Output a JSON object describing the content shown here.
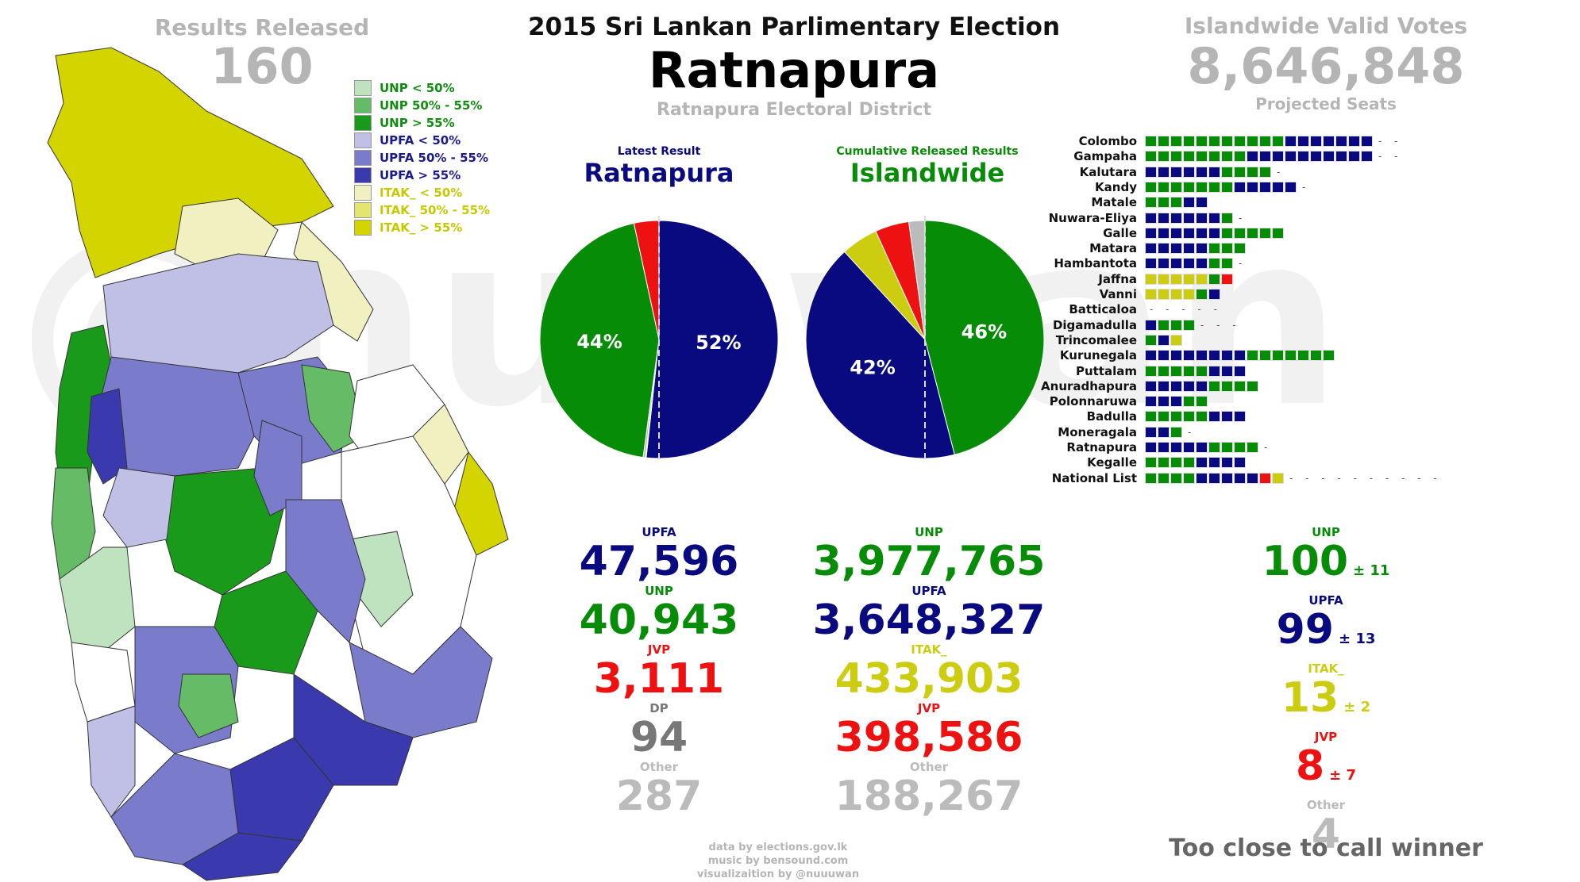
{
  "header": {
    "results_released_label": "Results Released",
    "results_released_value": "160",
    "title": "2015 Sri Lankan Parlimentary Election",
    "district": "Ratnapura",
    "district_sub": "Ratnapura Electoral District",
    "valid_votes_label": "Islandwide Valid Votes",
    "valid_votes_value": "8,646,848",
    "projected_label": "Projected Seats",
    "watermark": "@nuuwan"
  },
  "legend": [
    {
      "label": "UNP < 50%",
      "color": "#bfe3bf",
      "text_color": "#118c11"
    },
    {
      "label": "UNP 50% - 55%",
      "color": "#66bb66",
      "text_color": "#118c11"
    },
    {
      "label": "UNP > 55%",
      "color": "#1a9a1a",
      "text_color": "#118c11"
    },
    {
      "label": "UPFA < 50%",
      "color": "#c0c0e6",
      "text_color": "#1a1a8c"
    },
    {
      "label": "UPFA 50% - 55%",
      "color": "#7b7bcc",
      "text_color": "#1a1a8c"
    },
    {
      "label": "UPFA > 55%",
      "color": "#3a3aae",
      "text_color": "#1a1a8c"
    },
    {
      "label": "ITAK_ < 50%",
      "color": "#f0f0c0",
      "text_color": "#c8c800"
    },
    {
      "label": "ITAK_ 50% - 55%",
      "color": "#e4e470",
      "text_color": "#c8c800"
    },
    {
      "label": "ITAK_ > 55%",
      "color": "#d4d400",
      "text_color": "#c8c800"
    }
  ],
  "colors": {
    "UNP": "#078c07",
    "UPFA": "#0a0a80",
    "JVP": "#ee1111",
    "ITAK": "#cccc11",
    "DP": "#777777",
    "Other": "#bbbbbb"
  },
  "chart_data": [
    {
      "type": "pie",
      "subtitle": "Latest Result",
      "title": "Ratnapura",
      "slices": [
        {
          "name": "UPFA",
          "value": 47596,
          "pct_label": "52%"
        },
        {
          "name": "UNP",
          "value": 40943,
          "pct_label": "44%"
        },
        {
          "name": "JVP",
          "value": 3111,
          "pct_label": ""
        },
        {
          "name": "DP",
          "value": 94,
          "pct_label": ""
        },
        {
          "name": "Other",
          "value": 287,
          "pct_label": ""
        }
      ]
    },
    {
      "type": "pie",
      "subtitle": "Cumulative Released Results",
      "title": "Islandwide",
      "slices": [
        {
          "name": "UNP",
          "value": 3977765,
          "pct_label": "46%"
        },
        {
          "name": "UPFA",
          "value": 3648327,
          "pct_label": "42%"
        },
        {
          "name": "ITAK_",
          "value": 433903,
          "pct_label": ""
        },
        {
          "name": "JVP",
          "value": 398586,
          "pct_label": ""
        },
        {
          "name": "Other",
          "value": 188267,
          "pct_label": ""
        }
      ]
    },
    {
      "type": "bar",
      "title": "Projected Seats",
      "rows": [
        {
          "district": "Colombo",
          "UNP": 11,
          "UPFA": 7,
          "ITAK": 0,
          "JVP": 0,
          "dashes": 2
        },
        {
          "district": "Gampaha",
          "UNP": 8,
          "UPFA": 10,
          "ITAK": 0,
          "JVP": 0,
          "dashes": 2
        },
        {
          "district": "Kalutara",
          "UNP": 0,
          "UPFA": 6,
          "ITAK": 0,
          "JVP": 0,
          "dashes": 1,
          "UNP_after": 4
        },
        {
          "district": "Kandy",
          "UNP": 7,
          "UPFA": 5,
          "ITAK": 0,
          "JVP": 0,
          "dashes": 1
        },
        {
          "district": "Matale",
          "UNP": 3,
          "UPFA": 2,
          "ITAK": 0,
          "JVP": 0,
          "dashes": 0
        },
        {
          "district": "Nuwara-Eliya",
          "UNP": 0,
          "UPFA": 6,
          "ITAK": 0,
          "JVP": 0,
          "dashes": 1,
          "UNP_after": 1
        },
        {
          "district": "Galle",
          "UNP": 0,
          "UPFA": 6,
          "ITAK": 0,
          "JVP": 0,
          "dashes": 0,
          "UNP_after": 5
        },
        {
          "district": "Matara",
          "UNP": 0,
          "UPFA": 5,
          "ITAK": 0,
          "JVP": 0,
          "dashes": 0,
          "UNP_after": 3
        },
        {
          "district": "Hambantota",
          "UNP": 0,
          "UPFA": 5,
          "ITAK": 0,
          "JVP": 0,
          "dashes": 1,
          "UNP_after": 2
        },
        {
          "district": "Jaffna",
          "UNP": 0,
          "UPFA": 0,
          "ITAK": 5,
          "JVP": 0,
          "dashes": 0,
          "UNP_after": 1,
          "JVP_after": 1
        },
        {
          "district": "Vanni",
          "UNP": 0,
          "UPFA": 0,
          "ITAK": 4,
          "JVP": 0,
          "dashes": 0,
          "UNP_after": 1,
          "UPFA_after": 1
        },
        {
          "district": "Batticaloa",
          "UNP": 0,
          "UPFA": 0,
          "ITAK": 0,
          "JVP": 0,
          "dashes": 5
        },
        {
          "district": "Digamadulla",
          "UNP": 0,
          "UPFA": 1,
          "ITAK": 0,
          "JVP": 0,
          "dashes": 3,
          "UNP_after": 3
        },
        {
          "district": "Trincomalee",
          "UNP": 1,
          "UPFA": 1,
          "ITAK": 1,
          "JVP": 0,
          "dashes": 0
        },
        {
          "district": "Kurunegala",
          "UNP": 0,
          "UPFA": 8,
          "ITAK": 0,
          "JVP": 0,
          "dashes": 0,
          "UNP_after": 7
        },
        {
          "district": "Puttalam",
          "UNP": 5,
          "UPFA": 3,
          "ITAK": 0,
          "JVP": 0,
          "dashes": 0
        },
        {
          "district": "Anuradhapura",
          "UNP": 0,
          "UPFA": 5,
          "ITAK": 0,
          "JVP": 0,
          "dashes": 0,
          "UNP_after": 4
        },
        {
          "district": "Polonnaruwa",
          "UNP": 0,
          "UPFA": 3,
          "ITAK": 0,
          "JVP": 0,
          "dashes": 0,
          "UNP_after": 2
        },
        {
          "district": "Badulla",
          "UNP": 5,
          "UPFA": 3,
          "ITAK": 0,
          "JVP": 0,
          "dashes": 0
        },
        {
          "district": "Moneragala",
          "UNP": 0,
          "UPFA": 2,
          "ITAK": 0,
          "JVP": 0,
          "dashes": 1,
          "UNP_after": 1
        },
        {
          "district": "Ratnapura",
          "UNP": 0,
          "UPFA": 5,
          "ITAK": 0,
          "JVP": 0,
          "dashes": 1,
          "UNP_after": 4
        },
        {
          "district": "Kegalle",
          "UNP": 4,
          "UPFA": 4,
          "ITAK": 0,
          "JVP": 0,
          "dashes": 0
        },
        {
          "district": "National List",
          "UNP": 0,
          "UPFA": 0,
          "ITAK": 0,
          "JVP": 0,
          "dashes": 10,
          "UNP_after": 4,
          "UPFA_after": 5,
          "JVP_after": 1,
          "ITAK_after": 1
        }
      ]
    }
  ],
  "district_results": [
    {
      "party": "UPFA",
      "value": "47,596",
      "color": "#0a0a80",
      "label_color": "#0a0a80"
    },
    {
      "party": "UNP",
      "value": "40,943",
      "color": "#078c07",
      "label_color": "#078c07"
    },
    {
      "party": "JVP",
      "value": "3,111",
      "color": "#ee1111",
      "label_color": "#ee1111"
    },
    {
      "party": "DP",
      "value": "94",
      "color": "#777777",
      "label_color": "#777777"
    },
    {
      "party": "Other",
      "value": "287",
      "color": "#bbbbbb",
      "label_color": "#bbbbbb"
    }
  ],
  "island_results": [
    {
      "party": "UNP",
      "value": "3,977,765",
      "color": "#078c07",
      "label_color": "#078c07"
    },
    {
      "party": "UPFA",
      "value": "3,648,327",
      "color": "#0a0a80",
      "label_color": "#0a0a80"
    },
    {
      "party": "ITAK_",
      "value": "433,903",
      "color": "#cccc11",
      "label_color": "#cccc11"
    },
    {
      "party": "JVP",
      "value": "398,586",
      "color": "#ee1111",
      "label_color": "#ee1111"
    },
    {
      "party": "Other",
      "value": "188,267",
      "color": "#bbbbbb",
      "label_color": "#bbbbbb"
    }
  ],
  "seat_projection": [
    {
      "party": "UNP",
      "value": "100",
      "margin": "± 11",
      "color": "#078c07"
    },
    {
      "party": "UPFA",
      "value": "99",
      "margin": "± 13",
      "color": "#0a0a80"
    },
    {
      "party": "ITAK_",
      "value": "13",
      "margin": "± 2",
      "color": "#cccc11"
    },
    {
      "party": "JVP",
      "value": "8",
      "margin": "± 7",
      "color": "#ee1111"
    },
    {
      "party": "Other",
      "value": "4",
      "margin": "",
      "color": "#bbbbbb"
    }
  ],
  "verdict": "Too close to call winner",
  "credits": [
    "data by elections.gov.lk",
    "music by bensound.com",
    "visualizaition by @nuuuwan"
  ]
}
